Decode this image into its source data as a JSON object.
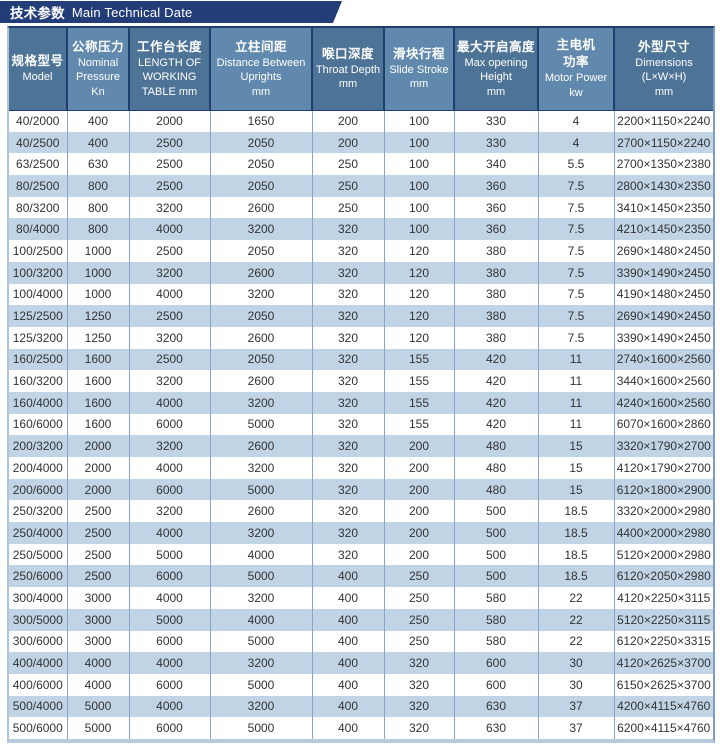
{
  "title": {
    "zh": "技术参数",
    "en": "Main Technical Date"
  },
  "colors": {
    "banner": "#233d78",
    "hdr_dark": "#4d7396",
    "hdr_light": "#6089ad",
    "stripe": "#c1d4e6",
    "border_dark": "#1e3f6e",
    "grid": "#8aa4c9",
    "text": "#333333"
  },
  "table": {
    "columns": [
      [
        "规格型号",
        "Model"
      ],
      [
        "公称压力",
        "Nominal",
        "Pressure",
        "Kn"
      ],
      [
        "工作台长度",
        "LENGTH OF",
        "WORKING",
        "TABLE mm"
      ],
      [
        "立柱间距",
        "Distance Between",
        "Uprights",
        "mm"
      ],
      [
        "喉口深度",
        "Throat Depth",
        "mm"
      ],
      [
        "滑块行程",
        "Slide Stroke",
        "mm"
      ],
      [
        "最大开启高度",
        "Max opening",
        "Height",
        "mm"
      ],
      [
        "主电机",
        "功率",
        "Motor Power",
        "kw"
      ],
      [
        "外型尺寸",
        "Dimensions",
        "(L×W×H)",
        "mm"
      ]
    ],
    "rows": [
      [
        "40/2000",
        "400",
        "2000",
        "1650",
        "200",
        "100",
        "330",
        "4",
        "2200×1150×2240"
      ],
      [
        "40/2500",
        "400",
        "2500",
        "2050",
        "200",
        "100",
        "330",
        "4",
        "2700×1150×2240"
      ],
      [
        "63/2500",
        "630",
        "2500",
        "2050",
        "250",
        "100",
        "340",
        "5.5",
        "2700×1350×2380"
      ],
      [
        "80/2500",
        "800",
        "2500",
        "2050",
        "250",
        "100",
        "360",
        "7.5",
        "2800×1430×2350"
      ],
      [
        "80/3200",
        "800",
        "3200",
        "2600",
        "250",
        "100",
        "360",
        "7.5",
        "3410×1450×2350"
      ],
      [
        "80/4000",
        "800",
        "4000",
        "3200",
        "320",
        "100",
        "360",
        "7.5",
        "4210×1450×2350"
      ],
      [
        "100/2500",
        "1000",
        "2500",
        "2050",
        "320",
        "120",
        "380",
        "7.5",
        "2690×1480×2450"
      ],
      [
        "100/3200",
        "1000",
        "3200",
        "2600",
        "320",
        "120",
        "380",
        "7.5",
        "3390×1490×2450"
      ],
      [
        "100/4000",
        "1000",
        "4000",
        "3200",
        "320",
        "120",
        "380",
        "7.5",
        "4190×1480×2450"
      ],
      [
        "125/2500",
        "1250",
        "2500",
        "2050",
        "320",
        "120",
        "380",
        "7.5",
        "2690×1490×2450"
      ],
      [
        "125/3200",
        "1250",
        "3200",
        "2600",
        "320",
        "120",
        "380",
        "7.5",
        "3390×1490×2450"
      ],
      [
        "160/2500",
        "1600",
        "2500",
        "2050",
        "320",
        "155",
        "420",
        "11",
        "2740×1600×2560"
      ],
      [
        "160/3200",
        "1600",
        "3200",
        "2600",
        "320",
        "155",
        "420",
        "11",
        "3440×1600×2560"
      ],
      [
        "160/4000",
        "1600",
        "4000",
        "3200",
        "320",
        "155",
        "420",
        "11",
        "4240×1600×2560"
      ],
      [
        "160/6000",
        "1600",
        "6000",
        "5000",
        "320",
        "155",
        "420",
        "11",
        "6070×1600×2860"
      ],
      [
        "200/3200",
        "2000",
        "3200",
        "2600",
        "320",
        "200",
        "480",
        "15",
        "3320×1790×2700"
      ],
      [
        "200/4000",
        "2000",
        "4000",
        "3200",
        "320",
        "200",
        "480",
        "15",
        "4120×1790×2700"
      ],
      [
        "200/6000",
        "2000",
        "6000",
        "5000",
        "320",
        "200",
        "480",
        "15",
        "6120×1800×2900"
      ],
      [
        "250/3200",
        "2500",
        "3200",
        "2600",
        "320",
        "200",
        "500",
        "18.5",
        "3320×2000×2980"
      ],
      [
        "250/4000",
        "2500",
        "4000",
        "3200",
        "320",
        "200",
        "500",
        "18.5",
        "4400×2000×2980"
      ],
      [
        "250/5000",
        "2500",
        "5000",
        "4000",
        "320",
        "200",
        "500",
        "18.5",
        "5120×2000×2980"
      ],
      [
        "250/6000",
        "2500",
        "6000",
        "5000",
        "400",
        "250",
        "500",
        "18.5",
        "6120×2050×2980"
      ],
      [
        "300/4000",
        "3000",
        "4000",
        "3200",
        "400",
        "250",
        "580",
        "22",
        "4120×2250×3115"
      ],
      [
        "300/5000",
        "3000",
        "5000",
        "4000",
        "400",
        "250",
        "580",
        "22",
        "5120×2250×3115"
      ],
      [
        "300/6000",
        "3000",
        "6000",
        "5000",
        "400",
        "250",
        "580",
        "22",
        "6120×2250×3315"
      ],
      [
        "400/4000",
        "4000",
        "4000",
        "3200",
        "400",
        "320",
        "600",
        "30",
        "4120×2625×3700"
      ],
      [
        "400/6000",
        "4000",
        "6000",
        "5000",
        "400",
        "320",
        "600",
        "30",
        "6150×2625×3700"
      ],
      [
        "500/4000",
        "5000",
        "4000",
        "3200",
        "400",
        "320",
        "630",
        "37",
        "4200×4115×4760"
      ],
      [
        "500/6000",
        "5000",
        "6000",
        "5000",
        "400",
        "320",
        "630",
        "37",
        "6200×4115×4760"
      ]
    ]
  }
}
